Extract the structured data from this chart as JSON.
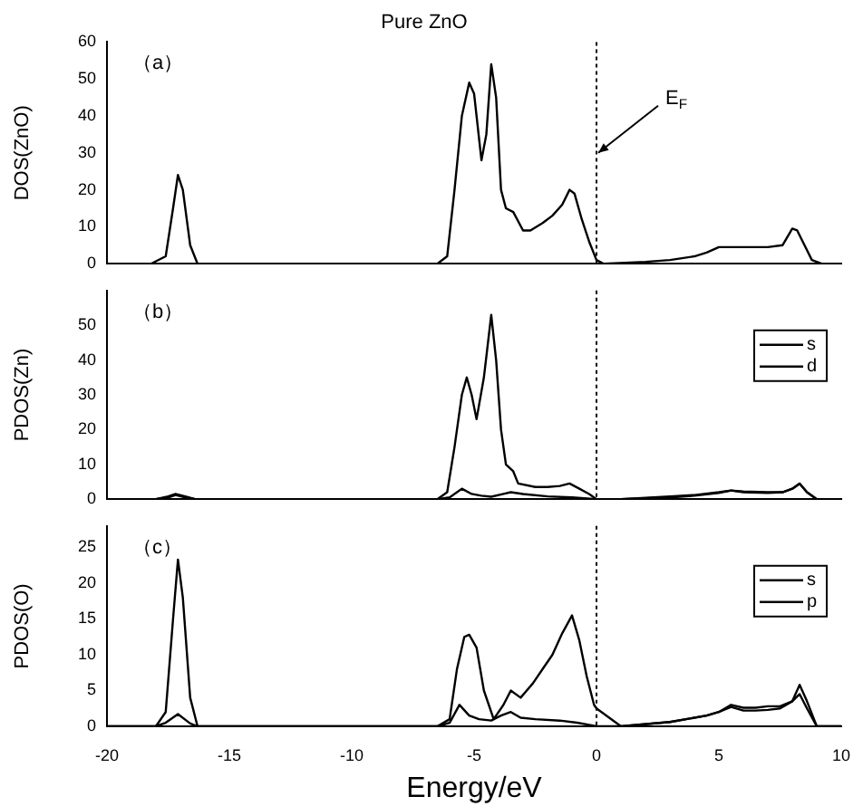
{
  "chart_data": [
    {
      "type": "line",
      "title": "Pure ZnO",
      "ylabel": "DOS(ZnO)",
      "xlim": [
        -20,
        10
      ],
      "xticks": [
        -20,
        -15,
        -10,
        -5,
        0,
        5,
        10
      ],
      "ylim": [
        0,
        60
      ],
      "yticks": [
        0,
        10,
        20,
        30,
        40,
        50,
        60
      ],
      "tick_labels": "y",
      "grid": false,
      "legend": false,
      "marker": "none",
      "line_style": "solid",
      "annotations": [
        "（a）",
        {
          "text": "E$_{F}$",
          "x": 0,
          "y": 30
        }
      ],
      "ref_lines": [
        {
          "axis": "x",
          "value": 0,
          "line_style": "dotted",
          "color": "#000000"
        }
      ],
      "series": [
        {
          "color": "#000000",
          "x": [
            -20,
            -18.2,
            -17.6,
            -17.3,
            -17.1,
            -16.9,
            -16.6,
            -16.3,
            -6.5,
            -6.1,
            -5.8,
            -5.5,
            -5.2,
            -5.0,
            -4.7,
            -4.5,
            -4.3,
            -4.1,
            -3.9,
            -3.7,
            -3.4,
            -3.0,
            -2.7,
            -2.2,
            -1.8,
            -1.4,
            -1.1,
            -0.9,
            -0.6,
            -0.3,
            0,
            0.3,
            2,
            3,
            4,
            4.5,
            5,
            6,
            7,
            7.6,
            8,
            8.2,
            8.5,
            8.8,
            9.2,
            10
          ],
          "values": [
            0,
            0,
            2,
            15,
            24,
            20,
            5,
            0,
            0,
            2,
            20,
            40,
            49,
            46,
            28,
            35,
            54,
            45,
            20,
            15,
            14,
            9,
            9,
            11,
            13,
            16,
            20,
            19,
            12,
            6,
            1,
            0,
            0.5,
            1,
            2,
            3,
            4.5,
            4.5,
            4.5,
            5,
            9.5,
            9,
            5,
            1,
            0,
            0
          ]
        }
      ]
    },
    {
      "type": "line",
      "ylabel": "PDOS(Zn)",
      "xlim": [
        -20,
        10
      ],
      "xticks": [
        -20,
        -15,
        -10,
        -5,
        0,
        5,
        10
      ],
      "ylim": [
        0,
        60
      ],
      "yticks": [
        0,
        10,
        20,
        30,
        40,
        50
      ],
      "tick_labels": "y",
      "grid": false,
      "legend": "top right",
      "marker": "none",
      "line_style": "solid",
      "annotations": [
        "（b）"
      ],
      "ref_lines": [
        {
          "axis": "x",
          "value": 0,
          "line_style": "dotted",
          "color": "#000000"
        }
      ],
      "series": [
        {
          "name": "s",
          "color": "#000000",
          "x": [
            -20,
            -18,
            -17.5,
            -17.2,
            -16.8,
            -16.4,
            -6.5,
            -6,
            -5.5,
            -5.1,
            -4.7,
            -4.3,
            -3.8,
            -3.5,
            -3,
            -2,
            -1,
            0,
            1,
            3,
            4,
            5,
            5.5,
            6,
            7,
            7.6,
            8,
            8.3,
            8.6,
            9,
            10
          ],
          "values": [
            0,
            0,
            0.5,
            1.2,
            0.5,
            0,
            0,
            0.5,
            3,
            1.5,
            1,
            0.7,
            1.5,
            2,
            1.5,
            0.8,
            0.5,
            0,
            0,
            0.8,
            1.2,
            2,
            2.5,
            2.2,
            2,
            2,
            3,
            4.5,
            2,
            0,
            0
          ]
        },
        {
          "name": "d",
          "color": "#000000",
          "x": [
            -20,
            -18,
            -17.5,
            -17.2,
            -16.8,
            -16.4,
            -6.5,
            -6.1,
            -5.8,
            -5.5,
            -5.3,
            -5.1,
            -4.9,
            -4.6,
            -4.3,
            -4.1,
            -3.9,
            -3.7,
            -3.4,
            -3.2,
            -2.5,
            -2,
            -1.5,
            -1.1,
            -0.7,
            -0.3,
            0,
            1,
            3,
            4,
            5,
            5.5,
            6,
            7,
            7.6,
            8,
            8.3,
            8.6,
            9,
            10
          ],
          "values": [
            0,
            0,
            0.8,
            1.5,
            0.8,
            0,
            0,
            2,
            15,
            30,
            35,
            30,
            23,
            35,
            53,
            40,
            20,
            10,
            8,
            4.5,
            3.5,
            3.5,
            3.8,
            4.5,
            3,
            1.5,
            0,
            0,
            0.5,
            1,
            1.8,
            2.5,
            2,
            1.8,
            2,
            3,
            4.5,
            2,
            0,
            0
          ]
        }
      ]
    },
    {
      "type": "line",
      "ylabel": "PDOS(O)",
      "xlabel": "Energy/eV",
      "xlim": [
        -20,
        10
      ],
      "xticks": [
        -20,
        -15,
        -10,
        -5,
        0,
        5,
        10
      ],
      "ylim": [
        0,
        28
      ],
      "yticks": [
        0,
        5,
        10,
        15,
        20,
        25
      ],
      "grid": false,
      "legend": "top right",
      "marker": "none",
      "line_style": "solid",
      "annotations": [
        "（c）"
      ],
      "ref_lines": [
        {
          "axis": "x",
          "value": 0,
          "line_style": "dotted",
          "color": "#000000"
        }
      ],
      "series": [
        {
          "name": "s",
          "color": "#000000",
          "x": [
            -20,
            -18,
            -17.6,
            -17.1,
            -16.6,
            -16.3,
            -6.5,
            -6,
            -5.6,
            -5.2,
            -4.8,
            -4.3,
            -3.9,
            -3.5,
            -3.1,
            -2.5,
            -1.5,
            -0.8,
            -0.3,
            0,
            1,
            3,
            4.5,
            5,
            5.5,
            6,
            6.5,
            7,
            7.5,
            8,
            8.3,
            8.6,
            9,
            10
          ],
          "values": [
            0,
            0,
            0.5,
            1.7,
            0.4,
            0,
            0,
            0.5,
            3,
            1.5,
            1,
            0.8,
            1.5,
            2,
            1.2,
            1,
            0.8,
            0.5,
            0.2,
            0,
            0,
            0.6,
            1.5,
            2,
            2.7,
            2.2,
            2.2,
            2.3,
            2.5,
            3.5,
            4.5,
            2.5,
            0,
            0
          ]
        },
        {
          "name": "p",
          "color": "#000000",
          "x": [
            -20,
            -18,
            -17.6,
            -17.3,
            -17.1,
            -16.9,
            -16.6,
            -16.3,
            -6.5,
            -6,
            -5.7,
            -5.4,
            -5.2,
            -4.9,
            -4.6,
            -4.2,
            -3.8,
            -3.5,
            -3.1,
            -2.6,
            -2.2,
            -1.8,
            -1.4,
            -1,
            -0.7,
            -0.4,
            -0.1,
            0,
            1,
            3,
            4.5,
            5,
            5.5,
            6,
            6.5,
            7,
            7.5,
            8,
            8.3,
            8.6,
            9,
            10
          ],
          "values": [
            0,
            0,
            2,
            15,
            23.3,
            18,
            4,
            0,
            0,
            1,
            8,
            12.5,
            12.8,
            11,
            5,
            1,
            3,
            5,
            4,
            6,
            8,
            10,
            13,
            15.5,
            12,
            7,
            3,
            2.5,
            0,
            0.6,
            1.5,
            2,
            3,
            2.6,
            2.6,
            2.8,
            2.8,
            3.5,
            5.8,
            3.5,
            0,
            0
          ]
        }
      ]
    }
  ]
}
